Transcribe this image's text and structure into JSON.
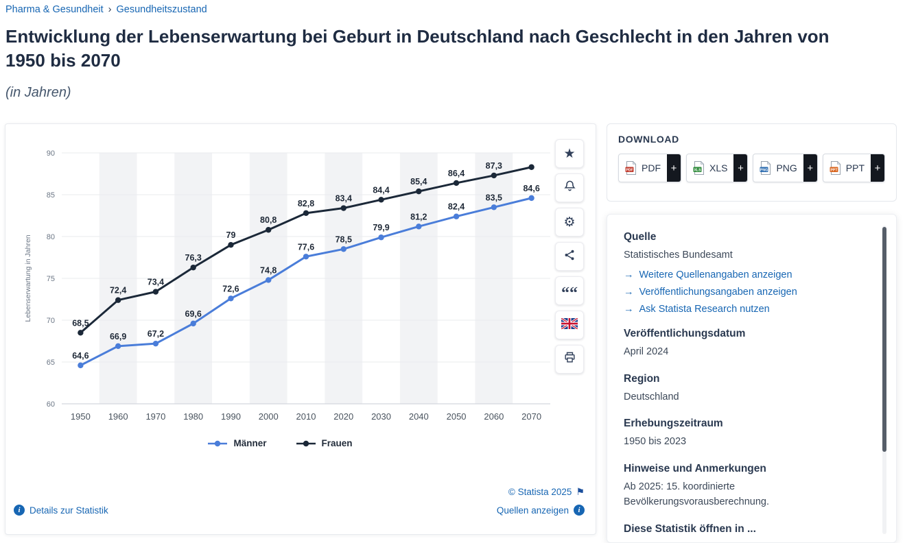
{
  "page": {
    "breadcrumb": {
      "part1": "Pharma & Gesundheit",
      "separator": "›",
      "part2": "Gesundheitszustand"
    },
    "title": "Entwicklung der Lebenserwartung bei Geburt in Deutschland nach Geschlecht in den Jahren von 1950 bis 2070",
    "subtitle": "(in Jahren)"
  },
  "chart_data": {
    "type": "line",
    "ylabel": "Lebenserwartung in Jahren",
    "ylim": [
      60,
      90
    ],
    "yticks": [
      60,
      65,
      70,
      75,
      80,
      85,
      90
    ],
    "grid": "horizontal",
    "legend_position": "bottom",
    "categories": [
      "1950",
      "1960",
      "1970",
      "1980",
      "1990",
      "2000",
      "2010",
      "2020",
      "2030",
      "2040",
      "2050",
      "2060",
      "2070"
    ],
    "series": [
      {
        "name": "Männer",
        "color": "#4a7dd9",
        "values": [
          64.6,
          66.9,
          67.2,
          69.6,
          72.6,
          74.8,
          77.6,
          78.5,
          79.9,
          81.2,
          82.4,
          83.5,
          84.6
        ],
        "labels": [
          "64,6",
          "66,9",
          "67,2",
          "69,6",
          "72,6",
          "74,8",
          "77,6",
          "78,5",
          "79,9",
          "81,2",
          "82,4",
          "83,5",
          "84,6"
        ]
      },
      {
        "name": "Frauen",
        "color": "#1b2838",
        "values": [
          68.5,
          72.4,
          73.4,
          76.3,
          79.0,
          80.8,
          82.8,
          83.4,
          84.4,
          85.4,
          86.4,
          87.3,
          88.3
        ],
        "labels": [
          "68,5",
          "72,4",
          "73,4",
          "76,3",
          "79",
          "80,8",
          "82,8",
          "83,4",
          "84,4",
          "85,4",
          "86,4",
          "87,3",
          ""
        ]
      }
    ]
  },
  "chart_footer": {
    "copyright": "© Statista 2025",
    "details_link": "Details zur Statistik",
    "sources_link": "Quellen anzeigen"
  },
  "toolbar": {
    "icons": [
      "favorite-star",
      "notifications-bell",
      "settings-gear",
      "share",
      "cite-quote",
      "language-english-flag",
      "print"
    ]
  },
  "download": {
    "label": "DOWNLOAD",
    "plus": "+",
    "buttons": [
      {
        "label": "PDF",
        "color": "#c0392b"
      },
      {
        "label": "XLS",
        "color": "#2e8b3a"
      },
      {
        "label": "PNG",
        "color": "#2b6cb0"
      },
      {
        "label": "PPT",
        "color": "#d8641e"
      }
    ]
  },
  "details": {
    "source_heading": "Quelle",
    "source_value": "Statistisches Bundesamt",
    "links": [
      "Weitere Quellenangaben anzeigen",
      "Veröffentlichungsangaben anzeigen",
      "Ask Statista Research nutzen"
    ],
    "published_heading": "Veröffentlichungsdatum",
    "published_value": "April 2024",
    "region_heading": "Region",
    "region_value": "Deutschland",
    "period_heading": "Erhebungszeitraum",
    "period_value": "1950 bis 2023",
    "notes_heading": "Hinweise und Anmerkungen",
    "notes_value": "Ab 2025: 15. koordinierte Bevölkerungsvorausberechnung.",
    "open_heading": "Diese Statistik öffnen in ..."
  },
  "glyphs": {
    "info": "i",
    "star": "★",
    "gear": "⚙",
    "quote": "““",
    "copyright_flag": "⚑",
    "arrow": "→"
  }
}
